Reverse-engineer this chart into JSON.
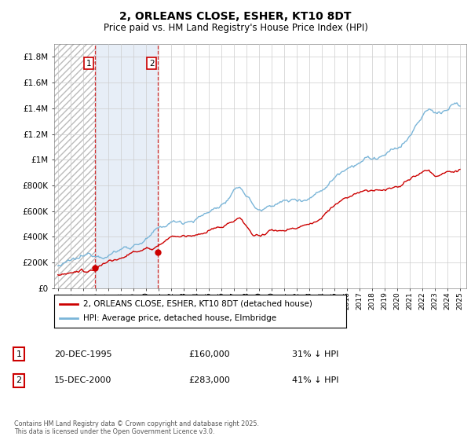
{
  "title": "2, ORLEANS CLOSE, ESHER, KT10 8DT",
  "subtitle": "Price paid vs. HM Land Registry's House Price Index (HPI)",
  "ylabel_ticks": [
    "£0",
    "£200K",
    "£400K",
    "£600K",
    "£800K",
    "£1M",
    "£1.2M",
    "£1.4M",
    "£1.6M",
    "£1.8M"
  ],
  "ylim": [
    0,
    1900000
  ],
  "xlim_start": 1992.7,
  "xlim_end": 2025.5,
  "hpi_color": "#7ab5d8",
  "price_color": "#cc0000",
  "purchase1_x": 1995.97,
  "purchase1_y": 160000,
  "purchase1_label": "1",
  "purchase2_x": 2000.96,
  "purchase2_y": 283000,
  "purchase2_label": "2",
  "legend_line1": "2, ORLEANS CLOSE, ESHER, KT10 8DT (detached house)",
  "legend_line2": "HPI: Average price, detached house, Elmbridge",
  "transaction1_date": "20-DEC-1995",
  "transaction1_price": "£160,000",
  "transaction1_hpi": "31% ↓ HPI",
  "transaction2_date": "15-DEC-2000",
  "transaction2_price": "£283,000",
  "transaction2_hpi": "41% ↓ HPI",
  "footnote": "Contains HM Land Registry data © Crown copyright and database right 2025.\nThis data is licensed under the Open Government Licence v3.0.",
  "hatch_color": "#bbbbbb",
  "shade_color": "#dde8f5",
  "grid_color": "#cccccc",
  "title_fontsize": 10,
  "subtitle_fontsize": 8.5,
  "hpi_waypoints_x": [
    1993.0,
    1994.0,
    1995.0,
    1996.0,
    1997.0,
    1998.0,
    1999.0,
    2000.0,
    2001.0,
    2002.0,
    2003.0,
    2004.0,
    2005.0,
    2006.0,
    2007.0,
    2007.5,
    2008.0,
    2008.5,
    2009.0,
    2009.5,
    2010.0,
    2011.0,
    2012.0,
    2013.0,
    2014.0,
    2015.0,
    2016.0,
    2017.0,
    2017.5,
    2018.0,
    2019.0,
    2020.0,
    2021.0,
    2022.0,
    2022.5,
    2023.0,
    2023.5,
    2024.0,
    2024.5,
    2025.0
  ],
  "hpi_waypoints_y": [
    175000,
    185000,
    200000,
    225000,
    265000,
    305000,
    345000,
    395000,
    445000,
    490000,
    510000,
    550000,
    590000,
    650000,
    730000,
    770000,
    710000,
    640000,
    590000,
    600000,
    650000,
    670000,
    680000,
    720000,
    790000,
    900000,
    1000000,
    1070000,
    1100000,
    1080000,
    1110000,
    1130000,
    1230000,
    1380000,
    1430000,
    1390000,
    1410000,
    1430000,
    1480000,
    1450000
  ],
  "price_waypoints_x": [
    1993.0,
    1994.0,
    1995.0,
    1995.97,
    1996.5,
    1997.0,
    1998.0,
    1999.0,
    2000.0,
    2000.96,
    2001.5,
    2002.0,
    2003.0,
    2004.0,
    2005.0,
    2006.0,
    2007.0,
    2007.5,
    2008.0,
    2008.5,
    2009.0,
    2009.5,
    2010.0,
    2011.0,
    2012.0,
    2013.0,
    2014.0,
    2015.0,
    2016.0,
    2017.0,
    2018.0,
    2019.0,
    2020.0,
    2021.0,
    2022.0,
    2022.5,
    2023.0,
    2023.5,
    2024.0,
    2024.5,
    2025.0
  ],
  "price_waypoints_y": [
    105000,
    120000,
    140000,
    160000,
    185000,
    200000,
    220000,
    250000,
    270000,
    283000,
    295000,
    310000,
    325000,
    345000,
    365000,
    400000,
    440000,
    460000,
    400000,
    360000,
    335000,
    360000,
    390000,
    400000,
    415000,
    445000,
    490000,
    570000,
    640000,
    685000,
    700000,
    730000,
    750000,
    810000,
    880000,
    890000,
    840000,
    850000,
    870000,
    850000,
    860000
  ]
}
